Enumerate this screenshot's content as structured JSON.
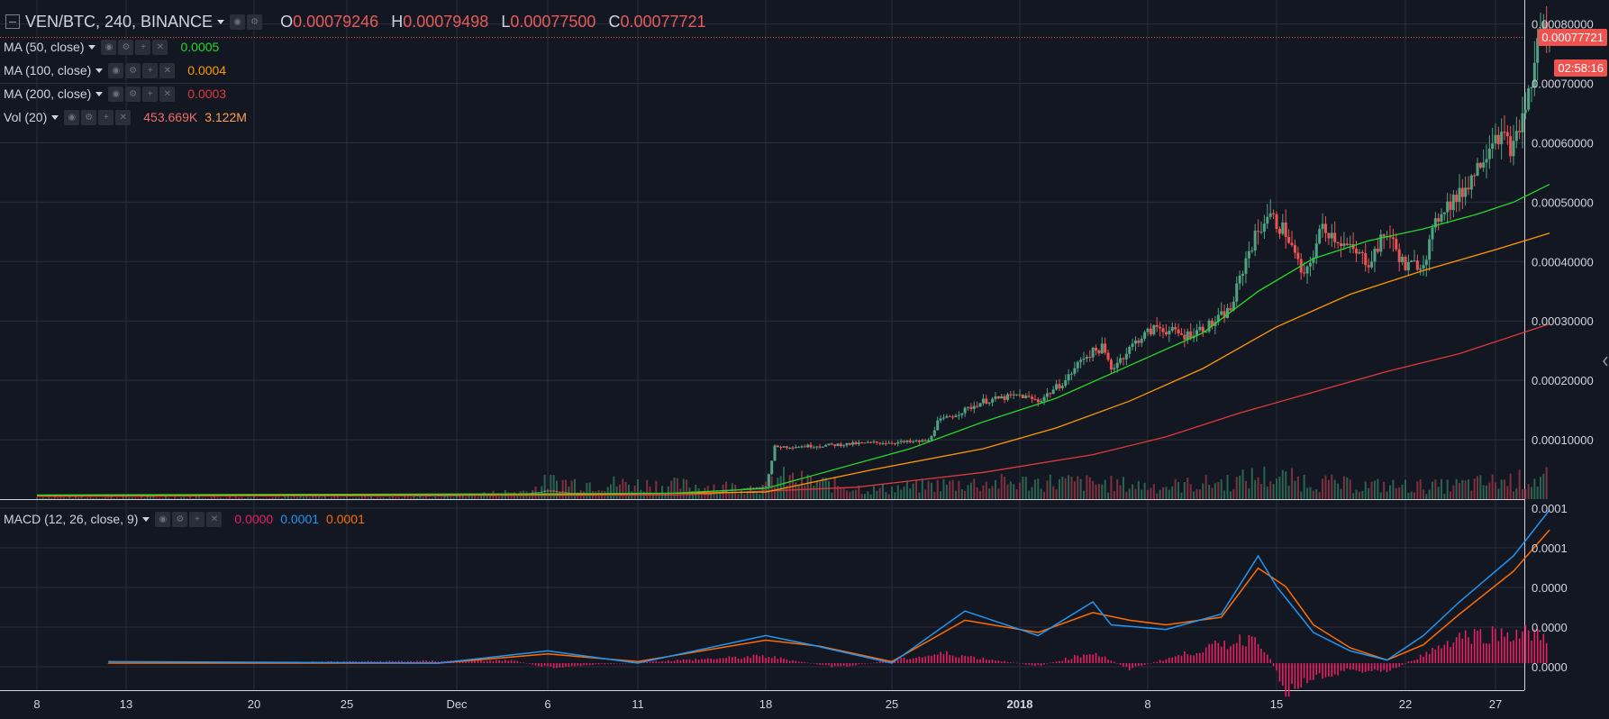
{
  "header": {
    "symbol": "VEN/BTC, 240, BINANCE",
    "ohlc": [
      {
        "key": "O",
        "value": "0.00079246"
      },
      {
        "key": "H",
        "value": "0.00079498"
      },
      {
        "key": "L",
        "value": "0.00077500"
      },
      {
        "key": "C",
        "value": "0.00077721"
      }
    ]
  },
  "indicators": [
    {
      "label": "MA (50, close)",
      "values": [
        {
          "v": "0.0005",
          "color": "#26d826"
        }
      ]
    },
    {
      "label": "MA (100, close)",
      "values": [
        {
          "v": "0.0004",
          "color": "#ff9800"
        }
      ]
    },
    {
      "label": "MA (200, close)",
      "values": [
        {
          "v": "0.0003",
          "color": "#e03a3a"
        }
      ]
    },
    {
      "label": "Vol (20)",
      "values": [
        {
          "v": "453.669K",
          "color": "#ef6a6a"
        },
        {
          "v": "3.122M",
          "color": "#ff9d4d"
        }
      ]
    }
  ],
  "macd_legend": {
    "label": "MACD (12, 26, close, 9)",
    "values": [
      {
        "v": "0.0000",
        "color": "#e91e63"
      },
      {
        "v": "0.0001",
        "color": "#2196f3"
      },
      {
        "v": "0.0001",
        "color": "#ff6d00"
      }
    ]
  },
  "price_tag": "0.00077721",
  "countdown": "02:58:16",
  "colors": {
    "background": "#131722",
    "grid": "#2a2e39",
    "up": "#4fa383",
    "down": "#ef5350",
    "ma50": "#26d826",
    "ma100": "#ff9800",
    "ma200": "#e03a3a",
    "macd": "#2196f3",
    "signal": "#ff6d00",
    "hist": "#e91e63"
  },
  "chart_data": [
    {
      "type": "candlestick",
      "symbol": "VEN/BTC",
      "interval": "240",
      "exchange": "BINANCE",
      "x_ticks": [
        "8",
        "13",
        "20",
        "25",
        "Dec",
        "6",
        "11",
        "18",
        "25",
        "2018",
        "8",
        "15",
        "22",
        "27"
      ],
      "x_tick_days": [
        0,
        5,
        12,
        17,
        23,
        28,
        33,
        40,
        47,
        54,
        61,
        68,
        75,
        80
      ],
      "x_range_days": [
        -1,
        80.5
      ],
      "y_ticks": [
        "0.00080000",
        "0.00070000",
        "0.00060000",
        "0.00050000",
        "0.00040000",
        "0.00030000",
        "0.00020000",
        "0.00010000"
      ],
      "ylim": [
        0,
        0.00081
      ],
      "grid": true,
      "close_path": [
        [
          0,
          6.5e-06
        ],
        [
          5,
          7e-06
        ],
        [
          10,
          6.5e-06
        ],
        [
          15,
          6e-06
        ],
        [
          23,
          6.2e-06
        ],
        [
          27,
          1e-05
        ],
        [
          28,
          1.45e-05
        ],
        [
          29,
          1.1e-05
        ],
        [
          33,
          7.5e-06
        ],
        [
          37,
          9e-06
        ],
        [
          38,
          1.5e-05
        ],
        [
          40,
          2.1e-05
        ],
        [
          40.5,
          8.8e-05
        ],
        [
          43,
          9e-05
        ],
        [
          46,
          9.5e-05
        ],
        [
          48,
          9.6e-05
        ],
        [
          49,
          9.8e-05
        ],
        [
          49.5,
          0.00013
        ],
        [
          51,
          0.00015
        ],
        [
          52,
          0.000165
        ],
        [
          54,
          0.000175
        ],
        [
          55,
          0.000165
        ],
        [
          56.5,
          0.0002
        ],
        [
          57.5,
          0.00024
        ],
        [
          58.5,
          0.000255
        ],
        [
          59,
          0.00022
        ],
        [
          60.5,
          0.00027
        ],
        [
          61.5,
          0.00029
        ],
        [
          63,
          0.000275
        ],
        [
          64.5,
          0.000295
        ],
        [
          65.5,
          0.00032
        ],
        [
          66.5,
          0.00042
        ],
        [
          67.5,
          0.00048
        ],
        [
          68.5,
          0.00045
        ],
        [
          69.5,
          0.00037
        ],
        [
          70.5,
          0.00046
        ],
        [
          72,
          0.00042
        ],
        [
          73,
          0.0004
        ],
        [
          74,
          0.00045
        ],
        [
          75,
          0.00039
        ],
        [
          76,
          0.0004
        ],
        [
          77,
          0.00049
        ],
        [
          78,
          0.00051
        ],
        [
          79,
          0.00056
        ],
        [
          80,
          0.00062
        ],
        [
          81,
          0.00059
        ],
        [
          82,
          0.0007
        ],
        [
          82.5,
          0.0008
        ],
        [
          83,
          0.0007772
        ]
      ],
      "ma50": [
        [
          0,
          7e-06
        ],
        [
          28,
          9e-06
        ],
        [
          35,
          1e-05
        ],
        [
          40,
          1.8e-05
        ],
        [
          48,
          8.5e-05
        ],
        [
          52,
          0.00013
        ],
        [
          56,
          0.00017
        ],
        [
          60,
          0.000225
        ],
        [
          64,
          0.00028
        ],
        [
          67,
          0.00035
        ],
        [
          70,
          0.000405
        ],
        [
          73,
          0.000435
        ],
        [
          76,
          0.000455
        ],
        [
          79,
          0.00048
        ],
        [
          81,
          0.0005
        ],
        [
          83,
          0.00053
        ]
      ],
      "ma100": [
        [
          0,
          6e-06
        ],
        [
          30,
          8e-06
        ],
        [
          40,
          1.2e-05
        ],
        [
          46,
          5e-05
        ],
        [
          52,
          8.5e-05
        ],
        [
          56,
          0.00012
        ],
        [
          60,
          0.000165
        ],
        [
          64,
          0.00022
        ],
        [
          68,
          0.00029
        ],
        [
          72,
          0.000345
        ],
        [
          76,
          0.000385
        ],
        [
          80,
          0.00042
        ],
        [
          83,
          0.000448
        ]
      ],
      "ma200": [
        [
          0,
          5e-06
        ],
        [
          35,
          7e-06
        ],
        [
          45,
          2e-05
        ],
        [
          52,
          4.5e-05
        ],
        [
          58,
          7.5e-05
        ],
        [
          62,
          0.000105
        ],
        [
          66,
          0.000145
        ],
        [
          70,
          0.00018
        ],
        [
          74,
          0.000215
        ],
        [
          78,
          0.000245
        ],
        [
          83,
          0.000295
        ]
      ],
      "volume_level": [
        [
          0,
          0.08
        ],
        [
          22,
          0.1
        ],
        [
          27,
          0.35
        ],
        [
          28,
          0.75
        ],
        [
          40,
          0.5
        ],
        [
          40.5,
          0.95
        ],
        [
          46,
          0.4
        ],
        [
          50,
          0.65
        ],
        [
          56,
          0.75
        ],
        [
          62,
          0.55
        ],
        [
          66,
          0.8
        ],
        [
          67,
          1.0
        ],
        [
          72,
          0.6
        ],
        [
          77,
          0.55
        ],
        [
          81,
          0.8
        ],
        [
          83,
          0.9
        ]
      ],
      "last_price": 0.00077721
    },
    {
      "type": "line",
      "name": "MACD (12, 26, close, 9)",
      "y_ticks": [
        "0.0001",
        "0.0001",
        "0.0000",
        "0.0000",
        "0.0000"
      ],
      "series": [
        {
          "name": "macd",
          "points": [
            [
              4,
              0.01
            ],
            [
              22,
              0.0
            ],
            [
              28,
              0.08
            ],
            [
              33,
              0.0
            ],
            [
              40,
              0.18
            ],
            [
              42.5,
              0.12
            ],
            [
              47,
              0.0
            ],
            [
              51,
              0.34
            ],
            [
              55,
              0.18
            ],
            [
              58,
              0.4
            ],
            [
              59,
              0.25
            ],
            [
              62,
              0.22
            ],
            [
              65,
              0.32
            ],
            [
              67,
              0.7
            ],
            [
              68,
              0.5
            ],
            [
              70,
              0.2
            ],
            [
              72,
              0.08
            ],
            [
              74,
              0.02
            ],
            [
              76,
              0.18
            ],
            [
              78,
              0.4
            ],
            [
              81,
              0.7
            ],
            [
              83,
              1.0
            ]
          ]
        },
        {
          "name": "signal",
          "points": [
            [
              4,
              0.0
            ],
            [
              22,
              0.0
            ],
            [
              28,
              0.06
            ],
            [
              33,
              0.01
            ],
            [
              40,
              0.15
            ],
            [
              43,
              0.11
            ],
            [
              47,
              0.01
            ],
            [
              51,
              0.28
            ],
            [
              55,
              0.2
            ],
            [
              58,
              0.33
            ],
            [
              60,
              0.28
            ],
            [
              62,
              0.25
            ],
            [
              65,
              0.3
            ],
            [
              67,
              0.62
            ],
            [
              68.5,
              0.5
            ],
            [
              70,
              0.25
            ],
            [
              72,
              0.1
            ],
            [
              74,
              0.02
            ],
            [
              76,
              0.12
            ],
            [
              78,
              0.32
            ],
            [
              81,
              0.6
            ],
            [
              83,
              0.87
            ]
          ]
        },
        {
          "name": "histogram",
          "points": [
            [
              4,
              0.0
            ],
            [
              26,
              0.02
            ],
            [
              28,
              -0.03
            ],
            [
              35,
              0.02
            ],
            [
              40,
              0.05
            ],
            [
              44,
              -0.03
            ],
            [
              50,
              0.07
            ],
            [
              55,
              -0.02
            ],
            [
              58,
              0.08
            ],
            [
              60,
              -0.04
            ],
            [
              64,
              0.1
            ],
            [
              67,
              0.2
            ],
            [
              68.5,
              -0.2
            ],
            [
              70,
              -0.1
            ],
            [
              72,
              -0.05
            ],
            [
              74,
              -0.06
            ],
            [
              76,
              0.06
            ],
            [
              78,
              0.2
            ],
            [
              81,
              0.22
            ],
            [
              83,
              0.2
            ]
          ]
        }
      ]
    }
  ]
}
